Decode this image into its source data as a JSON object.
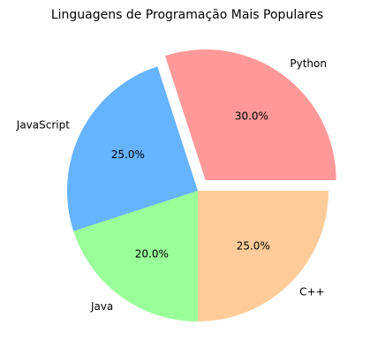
{
  "chart_data": {
    "type": "pie",
    "title": "Linguagens de Programação Mais Populares",
    "categories": [
      "Python",
      "JavaScript",
      "Java",
      "C++"
    ],
    "values": [
      30,
      25,
      20,
      25
    ],
    "value_labels": [
      "30.0%",
      "25.0%",
      "20.0%",
      "25.0%"
    ],
    "colors": [
      "#ff9999",
      "#66b3ff",
      "#99ff99",
      "#ffcc99"
    ],
    "explode": [
      0.1,
      0,
      0,
      0
    ]
  }
}
